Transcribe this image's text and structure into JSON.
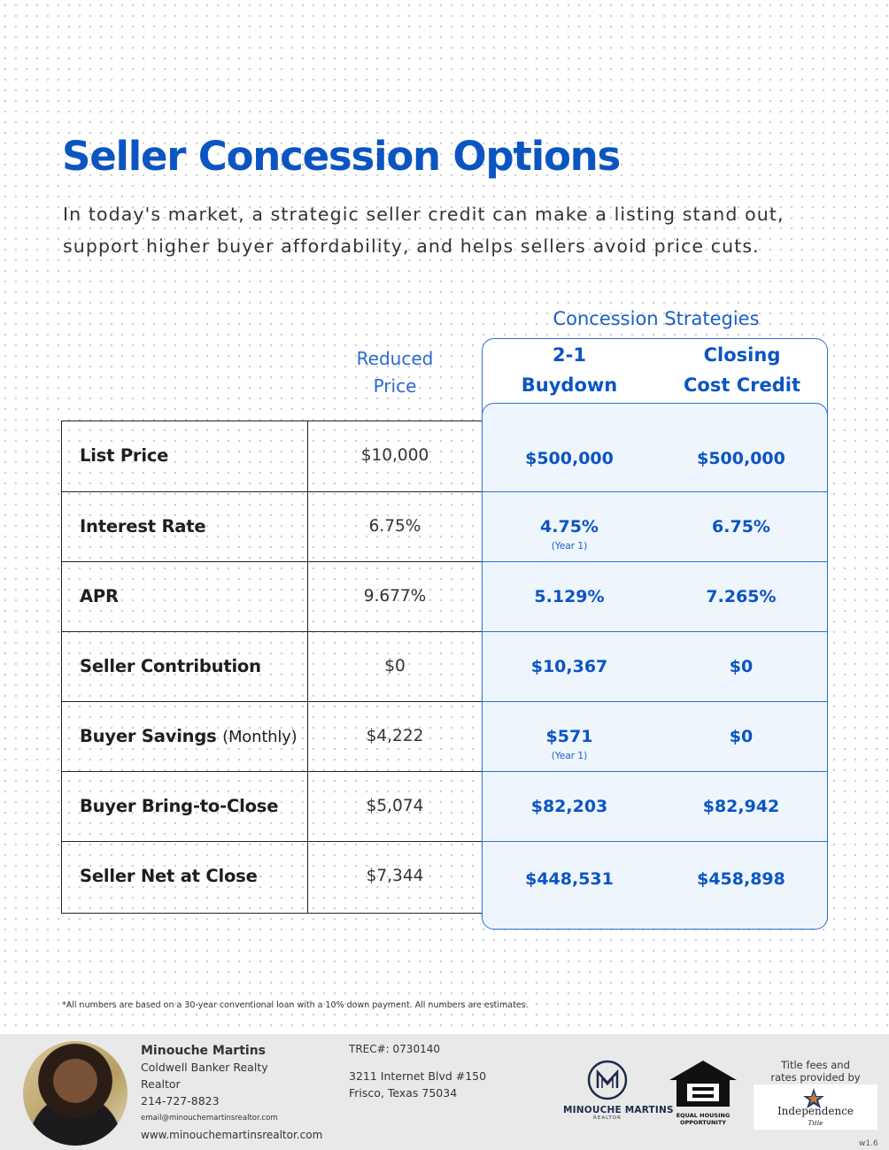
{
  "title": "Seller Concession Options",
  "intro_lines": [
    "In today's market, a strategic seller credit can make a listing stand out,",
    "support higher buyer affordability, and helps sellers avoid price cuts."
  ],
  "columns": {
    "strategies_caption": "Concession Strategies",
    "reduced_line1": "Reduced",
    "reduced_line2": "Price",
    "buydown_line1": "2-1",
    "buydown_line2": "Buydown",
    "credit_line1": "Closing",
    "credit_line2": "Cost Credit"
  },
  "rows": [
    {
      "label": "List Price",
      "reduced": "$10,000",
      "buydown": "$500,000",
      "credit": "$500,000"
    },
    {
      "label": "Interest Rate",
      "reduced": "6.75%",
      "buydown": "4.75%",
      "buydown_note": "(Year 1)",
      "credit": "6.75%"
    },
    {
      "label": "APR",
      "reduced": "9.677%",
      "buydown": "5.129%",
      "credit": "7.265%"
    },
    {
      "label": "Seller Contribution",
      "reduced": "$0",
      "buydown": "$10,367",
      "credit": "$0"
    },
    {
      "label": "Buyer Savings",
      "label_suffix": "(Monthly)",
      "reduced": "$4,222",
      "buydown": "$571",
      "buydown_note": "(Year 1)",
      "credit": "$0"
    },
    {
      "label": "Buyer Bring-to-Close",
      "reduced": "$5,074",
      "buydown": "$82,203",
      "credit": "$82,942"
    },
    {
      "label": "Seller Net at Close",
      "reduced": "$7,344",
      "buydown": "$448,531",
      "credit": "$458,898"
    }
  ],
  "disclaimer": "*All numbers are based on a 30-year conventional loan with a 10% down payment. All numbers are estimates.",
  "footer": {
    "name": "Minouche Martins",
    "company": "Coldwell Banker Realty",
    "role": "Realtor",
    "phone": "214-727-8823",
    "email": "email@minouchemartinsrealtor.com",
    "website": "www.minouchemartinsrealtor.com",
    "trec": "TREC#: 0730140",
    "address_line1": "3211 Internet Blvd #150",
    "address_line2": "Frisco, Texas 75034",
    "logo_title": "MINOUCHE MARTINS",
    "logo_sub": "REALTOR",
    "eho_line1": "EQUAL HOUSING",
    "eho_line2": "OPPORTUNITY",
    "title_fees_line1": "Title fees and",
    "title_fees_line2": "rates provided by",
    "title_company": "Independence",
    "title_company_sub": "Title",
    "version": "w1.6"
  },
  "colors": {
    "brand_blue": "#0b55c2",
    "panel_fill": "#eef5fd",
    "footer_bg": "#e9e9ea"
  }
}
